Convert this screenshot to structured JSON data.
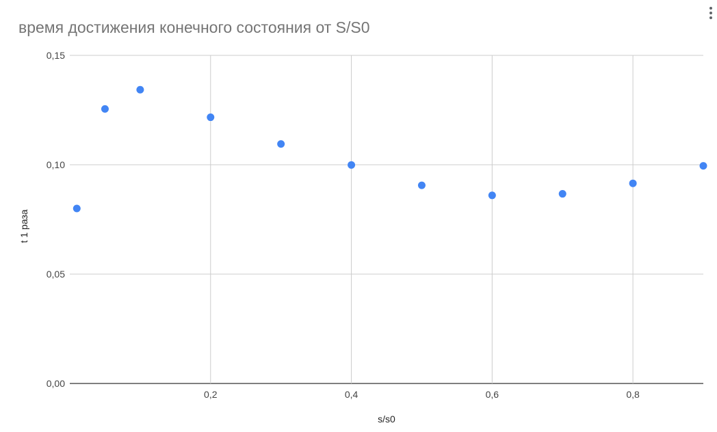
{
  "chart": {
    "title": "время достижения конечного состояния от S/S0",
    "menu_icon": "more-vert-icon"
  },
  "colors": {
    "point": "#4285f4",
    "grid": "#cccccc",
    "baseline": "#333333",
    "title": "#757575"
  },
  "chart_data": {
    "type": "scatter",
    "title": "время достижения конечного состояния от S/S0",
    "xlabel": "s/s0",
    "ylabel": "t 1 раза",
    "xlim": [
      0,
      0.9
    ],
    "ylim": [
      0,
      0.15
    ],
    "x_ticks": [
      0.2,
      0.4,
      0.6,
      0.8
    ],
    "x_tick_labels": [
      "0,2",
      "0,4",
      "0,6",
      "0,8"
    ],
    "y_ticks": [
      0,
      0.05,
      0.1,
      0.15
    ],
    "y_tick_labels": [
      "0,00",
      "0,05",
      "0,10",
      "0,15"
    ],
    "grid": true,
    "legend": "none",
    "series": [
      {
        "x": [
          0.01,
          0.05,
          0.1,
          0.2,
          0.3,
          0.4,
          0.5,
          0.6,
          0.7,
          0.8,
          0.9
        ],
        "y": [
          0.08,
          0.1255,
          0.1343,
          0.1217,
          0.1095,
          0.0999,
          0.0906,
          0.086,
          0.0867,
          0.0915,
          0.0995
        ]
      }
    ]
  }
}
